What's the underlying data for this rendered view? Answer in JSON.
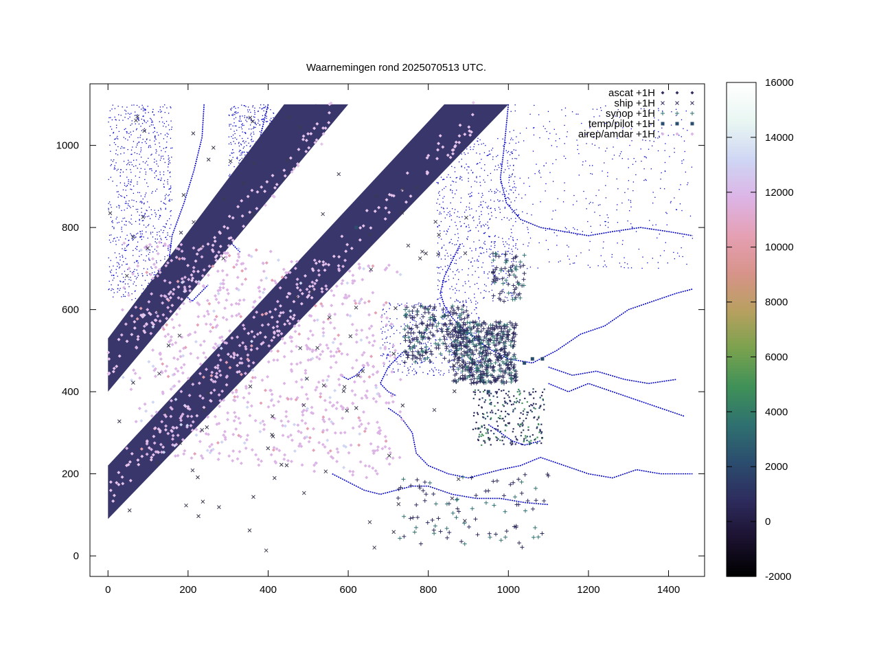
{
  "chart_data": {
    "type": "scatter",
    "title": "Waarnemingen rond 2025070513 UTC.",
    "xlabel": "",
    "ylabel": "",
    "xlim": [
      -45,
      1490
    ],
    "ylim": [
      -50,
      1150
    ],
    "xticks": [
      0,
      200,
      400,
      600,
      800,
      1000,
      1200,
      1400
    ],
    "yticks": [
      0,
      200,
      400,
      600,
      800,
      1000
    ],
    "grid": false,
    "legend_position": "top-right",
    "colorbar": {
      "range": [
        -2000,
        16000
      ],
      "ticks": [
        -2000,
        0,
        2000,
        4000,
        6000,
        8000,
        10000,
        12000,
        14000,
        16000
      ],
      "palette": [
        "#000000",
        "#1c1230",
        "#2e2c5e",
        "#2b4d6e",
        "#2f7170",
        "#3f9158",
        "#7aa24e",
        "#b8a060",
        "#d7938a",
        "#e5a0b4",
        "#dcb4e6",
        "#cfd6f4",
        "#e8f6f2",
        "#ffffff"
      ]
    },
    "series": [
      {
        "name": "ascat +1H",
        "marker": "diamond",
        "color": "#2e2c5e"
      },
      {
        "name": "ship +1H",
        "marker": "x",
        "color": "#2e2c5e"
      },
      {
        "name": "synop +1H",
        "marker": "plus",
        "color": "#2f7170"
      },
      {
        "name": "temp/pilot +1H",
        "marker": "square",
        "color": "#2b4d6e"
      },
      {
        "name": "airep/amdar +1H",
        "marker": "diamond",
        "color": "#dcb4e6"
      }
    ],
    "coast_color": "#0000cc",
    "swath_color": "#38366a"
  }
}
